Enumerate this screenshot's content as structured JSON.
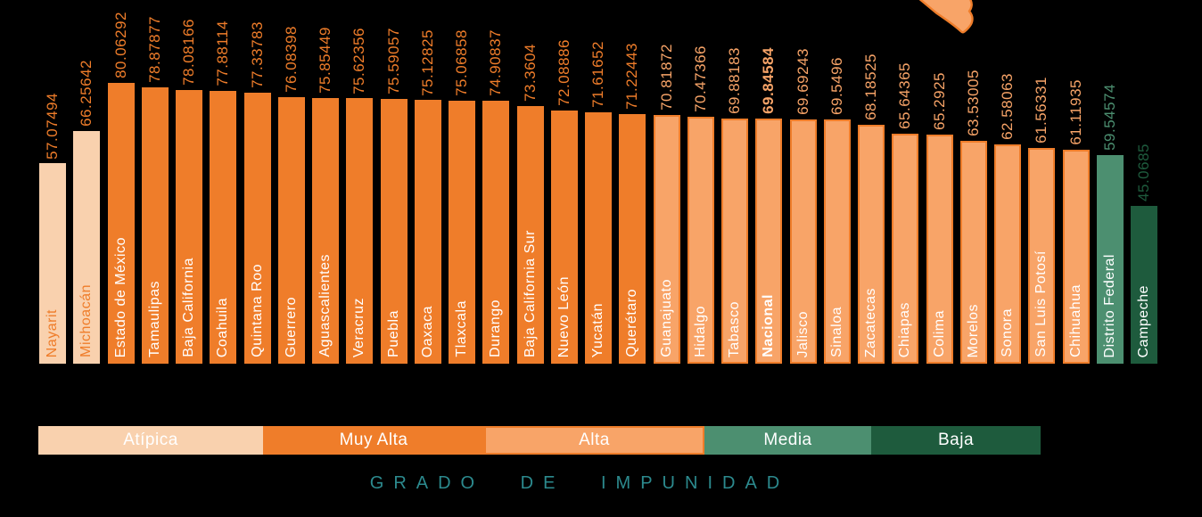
{
  "title": "GRADO DE IMPUNIDAD",
  "colors": {
    "background": "#000000",
    "title_teal": "#2C8A8E",
    "white": "#FFFFFF"
  },
  "categories": {
    "atipica": {
      "label": "Atípica",
      "fill": "#F9D1AE",
      "border": "",
      "value_color": "#EF7D2A",
      "name_color": "#EF7D2A"
    },
    "muy_alta": {
      "label": "Muy Alta",
      "fill": "#EF7D2A",
      "border": "",
      "value_color": "#EF7D2A",
      "name_color": "#FFFFFF"
    },
    "alta": {
      "label": "Alta",
      "fill": "#F8A468",
      "border": "#EF7D2A",
      "value_color": "#F8A468",
      "name_color": "#FFFFFF"
    },
    "media": {
      "label": "Media",
      "fill": "#4C8F70",
      "border": "",
      "value_color": "#4C8F70",
      "name_color": "#FFFFFF"
    },
    "baja": {
      "label": "Baja",
      "fill": "#1E5B3D",
      "border": "",
      "value_color": "#1E5B3D",
      "name_color": "#FFFFFF"
    }
  },
  "legend_order": [
    "atipica",
    "muy_alta",
    "alta",
    "media",
    "baja"
  ],
  "decorations": {
    "map_fragment": "partial-orange-map-shape-top-right"
  },
  "chart_data": {
    "type": "bar",
    "title": "GRADO DE IMPUNIDAD",
    "xlabel": "",
    "ylabel": "",
    "ylim": [
      0,
      80.06292
    ],
    "grid": false,
    "legend_position": "bottom",
    "bars": [
      {
        "name": "Nayarit",
        "value": 57.07494,
        "category": "atipica",
        "bold": false
      },
      {
        "name": "Michoacán",
        "value": 66.25642,
        "category": "atipica",
        "bold": false
      },
      {
        "name": "Estado de México",
        "value": 80.06292,
        "category": "muy_alta",
        "bold": false
      },
      {
        "name": "Tamaulipas",
        "value": 78.87877,
        "category": "muy_alta",
        "bold": false
      },
      {
        "name": "Baja California",
        "value": 78.08166,
        "category": "muy_alta",
        "bold": false
      },
      {
        "name": "Coahuila",
        "value": 77.88114,
        "category": "muy_alta",
        "bold": false
      },
      {
        "name": "Quintana Roo",
        "value": 77.33783,
        "category": "muy_alta",
        "bold": false
      },
      {
        "name": "Guerrero",
        "value": 76.08398,
        "category": "muy_alta",
        "bold": false
      },
      {
        "name": "Aguascalientes",
        "value": 75.85449,
        "category": "muy_alta",
        "bold": false
      },
      {
        "name": "Veracruz",
        "value": 75.62356,
        "category": "muy_alta",
        "bold": false
      },
      {
        "name": "Puebla",
        "value": 75.59057,
        "category": "muy_alta",
        "bold": false
      },
      {
        "name": "Oaxaca",
        "value": 75.12825,
        "category": "muy_alta",
        "bold": false
      },
      {
        "name": "Tlaxcala",
        "value": 75.06858,
        "category": "muy_alta",
        "bold": false
      },
      {
        "name": "Durango",
        "value": 74.90837,
        "category": "muy_alta",
        "bold": false
      },
      {
        "name": "Baja California Sur",
        "value": 73.3604,
        "category": "muy_alta",
        "bold": false
      },
      {
        "name": "Nuevo León",
        "value": 72.08886,
        "category": "muy_alta",
        "bold": false
      },
      {
        "name": "Yucatán",
        "value": 71.61652,
        "category": "muy_alta",
        "bold": false
      },
      {
        "name": "Querétaro",
        "value": 71.22443,
        "category": "muy_alta",
        "bold": false
      },
      {
        "name": "Guanajuato",
        "value": 70.81872,
        "category": "alta",
        "bold": false
      },
      {
        "name": "Hidalgo",
        "value": 70.47366,
        "category": "alta",
        "bold": false
      },
      {
        "name": "Tabasco",
        "value": 69.88183,
        "category": "alta",
        "bold": false
      },
      {
        "name": "Nacional",
        "value": 69.84584,
        "category": "alta",
        "bold": true
      },
      {
        "name": "Jalisco",
        "value": 69.69243,
        "category": "alta",
        "bold": false
      },
      {
        "name": "Sinaloa",
        "value": 69.5496,
        "category": "alta",
        "bold": false
      },
      {
        "name": "Zacatecas",
        "value": 68.18525,
        "category": "alta",
        "bold": false
      },
      {
        "name": "Chiapas",
        "value": 65.64365,
        "category": "alta",
        "bold": false
      },
      {
        "name": "Colima",
        "value": 65.2925,
        "category": "alta",
        "bold": false
      },
      {
        "name": "Morelos",
        "value": 63.53005,
        "category": "alta",
        "bold": false
      },
      {
        "name": "Sonora",
        "value": 62.58063,
        "category": "alta",
        "bold": false
      },
      {
        "name": "San Luis Potosí",
        "value": 61.56331,
        "category": "alta",
        "bold": false
      },
      {
        "name": "Chihuahua",
        "value": 61.11935,
        "category": "alta",
        "bold": false
      },
      {
        "name": "Distrito Federal",
        "value": 59.54574,
        "category": "media",
        "bold": false
      },
      {
        "name": "Campeche",
        "value": 45.0685,
        "category": "baja",
        "bold": false
      }
    ]
  }
}
